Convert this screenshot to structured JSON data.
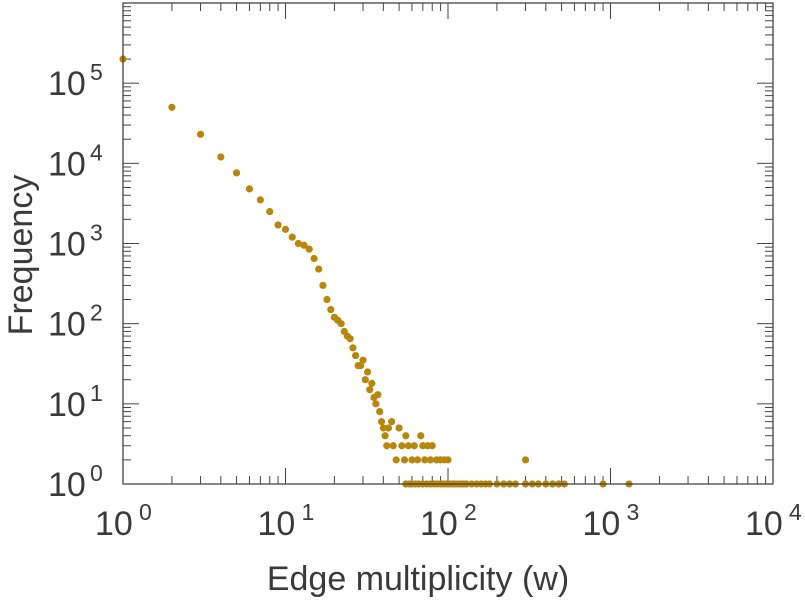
{
  "chart_data": {
    "type": "scatter",
    "title": "",
    "xlabel": "Edge multiplicity (w)",
    "ylabel": "Frequency",
    "xscale": "log",
    "yscale": "log",
    "xlim": [
      1,
      10000
    ],
    "ylim": [
      1,
      1000000
    ],
    "grid": false,
    "legend": "none",
    "marker_color": "#b8860b",
    "x_ticks": [
      {
        "base": "10",
        "exp": "0"
      },
      {
        "base": "10",
        "exp": "1"
      },
      {
        "base": "10",
        "exp": "2"
      },
      {
        "base": "10",
        "exp": "3"
      },
      {
        "base": "10",
        "exp": "4"
      }
    ],
    "y_ticks": [
      {
        "base": "10",
        "exp": "0"
      },
      {
        "base": "10",
        "exp": "1"
      },
      {
        "base": "10",
        "exp": "2"
      },
      {
        "base": "10",
        "exp": "3"
      },
      {
        "base": "10",
        "exp": "4"
      },
      {
        "base": "10",
        "exp": "5"
      }
    ],
    "points": [
      [
        1,
        200000
      ],
      [
        2,
        50000
      ],
      [
        3,
        23000
      ],
      [
        4,
        12000
      ],
      [
        5,
        7600
      ],
      [
        6,
        4800
      ],
      [
        7,
        3500
      ],
      [
        8,
        2500
      ],
      [
        9,
        1700
      ],
      [
        10,
        1500
      ],
      [
        11,
        1200
      ],
      [
        12,
        1000
      ],
      [
        13,
        950
      ],
      [
        14,
        850
      ],
      [
        15,
        650
      ],
      [
        16,
        480
      ],
      [
        17,
        300
      ],
      [
        18,
        200
      ],
      [
        19,
        150
      ],
      [
        20,
        120
      ],
      [
        21,
        110
      ],
      [
        22,
        100
      ],
      [
        23,
        80
      ],
      [
        24,
        70
      ],
      [
        25,
        65
      ],
      [
        26,
        50
      ],
      [
        27,
        40
      ],
      [
        28,
        30
      ],
      [
        29,
        30
      ],
      [
        30,
        35
      ],
      [
        31,
        20
      ],
      [
        32,
        25
      ],
      [
        33,
        15
      ],
      [
        34,
        18
      ],
      [
        35,
        12
      ],
      [
        36,
        10
      ],
      [
        37,
        13
      ],
      [
        38,
        8
      ],
      [
        39,
        6
      ],
      [
        40,
        5
      ],
      [
        41,
        4
      ],
      [
        42,
        3
      ],
      [
        43,
        5
      ],
      [
        45,
        6
      ],
      [
        46,
        3
      ],
      [
        48,
        2
      ],
      [
        50,
        5
      ],
      [
        52,
        3
      ],
      [
        54,
        2
      ],
      [
        55,
        4
      ],
      [
        57,
        3
      ],
      [
        60,
        2
      ],
      [
        62,
        3
      ],
      [
        65,
        2
      ],
      [
        68,
        4
      ],
      [
        70,
        3
      ],
      [
        72,
        2
      ],
      [
        75,
        3
      ],
      [
        78,
        2
      ],
      [
        80,
        3
      ],
      [
        85,
        2
      ],
      [
        90,
        2
      ],
      [
        95,
        2
      ],
      [
        100,
        2
      ],
      [
        300,
        2
      ],
      [
        55,
        1
      ],
      [
        58,
        1
      ],
      [
        60,
        1
      ],
      [
        63,
        1
      ],
      [
        66,
        1
      ],
      [
        70,
        1
      ],
      [
        74,
        1
      ],
      [
        78,
        1
      ],
      [
        82,
        1
      ],
      [
        86,
        1
      ],
      [
        90,
        1
      ],
      [
        94,
        1
      ],
      [
        98,
        1
      ],
      [
        102,
        1
      ],
      [
        106,
        1
      ],
      [
        110,
        1
      ],
      [
        115,
        1
      ],
      [
        120,
        1
      ],
      [
        125,
        1
      ],
      [
        130,
        1
      ],
      [
        140,
        1
      ],
      [
        150,
        1
      ],
      [
        160,
        1
      ],
      [
        170,
        1
      ],
      [
        180,
        1
      ],
      [
        200,
        1
      ],
      [
        220,
        1
      ],
      [
        240,
        1
      ],
      [
        260,
        1
      ],
      [
        300,
        1
      ],
      [
        330,
        1
      ],
      [
        360,
        1
      ],
      [
        400,
        1
      ],
      [
        440,
        1
      ],
      [
        480,
        1
      ],
      [
        520,
        1
      ],
      [
        900,
        1
      ],
      [
        1300,
        1
      ]
    ]
  }
}
